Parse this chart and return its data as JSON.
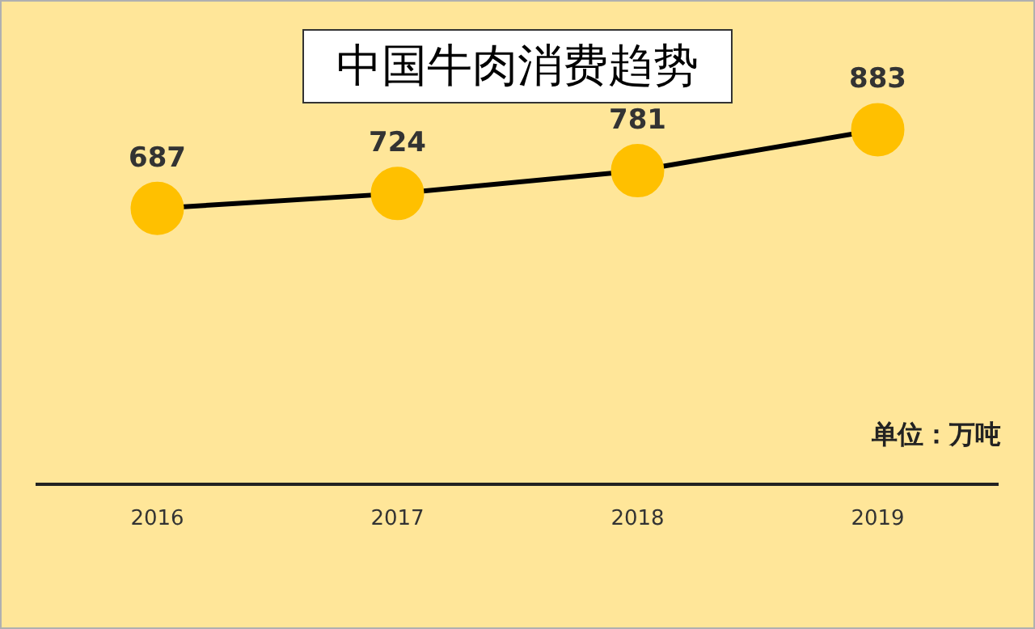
{
  "chart_data": {
    "type": "line",
    "title": "中国牛肉消费趋势",
    "categories": [
      "2016",
      "2017",
      "2018",
      "2019"
    ],
    "series": [
      {
        "color": "#ffc000",
        "values": [
          687,
          724,
          781,
          883
        ]
      }
    ],
    "data_labels": true,
    "marker": "circle",
    "line_style": "solid",
    "grid": false,
    "legend": false,
    "tick_labels": "x",
    "annotations": [
      "单位：万吨"
    ]
  }
}
